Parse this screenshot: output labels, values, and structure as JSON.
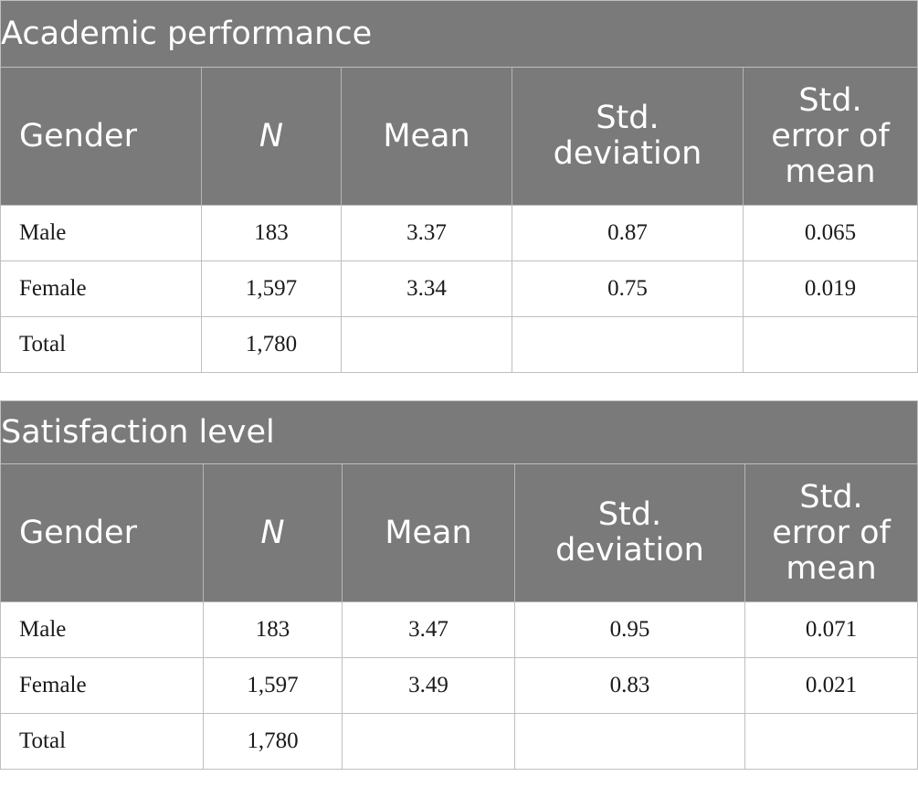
{
  "tables": [
    {
      "title": "Academic performance",
      "headers": [
        "Gender",
        "N",
        "Mean",
        "Std. deviation",
        "Std. error of mean"
      ],
      "rows": [
        [
          "Male",
          "183",
          "3.37",
          "0.87",
          "0.065"
        ],
        [
          "Female",
          "1,597",
          "3.34",
          "0.75",
          "0.019"
        ],
        [
          "Total",
          "1,780",
          "",
          "",
          ""
        ]
      ]
    },
    {
      "title": "Satisfaction level",
      "headers": [
        "Gender",
        "N",
        "Mean",
        "Std. deviation",
        "Std. error of mean"
      ],
      "rows": [
        [
          "Male",
          "183",
          "3.47",
          "0.95",
          "0.071"
        ],
        [
          "Female",
          "1,597",
          "3.49",
          "0.83",
          "0.021"
        ],
        [
          "Total",
          "1,780",
          "",
          "",
          ""
        ]
      ]
    }
  ]
}
